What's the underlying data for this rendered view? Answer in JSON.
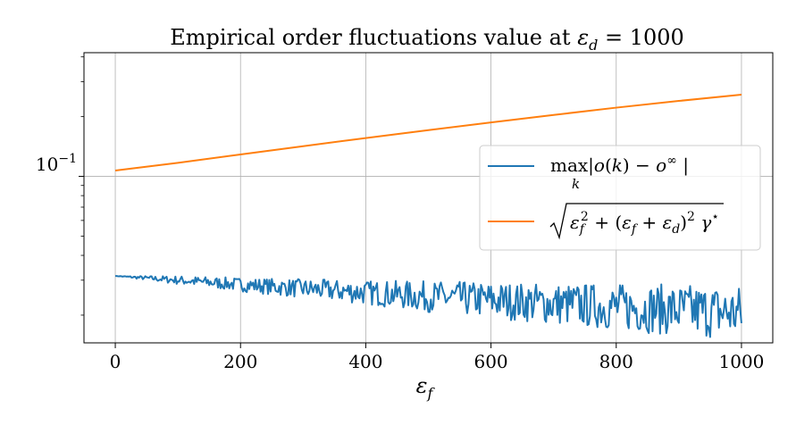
{
  "chart_data": {
    "type": "line",
    "title": "Empirical order fluctuations value at ε_d = 1000",
    "xlabel": "ε_f",
    "ylabel": "",
    "x_scale": "linear",
    "y_scale": "log",
    "xlim": [
      -50,
      1050
    ],
    "ylim": [
      0.0145,
      0.42
    ],
    "x_ticks": [
      0,
      200,
      400,
      600,
      800,
      1000
    ],
    "x_tick_labels": [
      "0",
      "200",
      "400",
      "600",
      "800",
      "1000"
    ],
    "y_major_ticks": [
      0.1
    ],
    "y_tick_labels": [
      "10^{-1}"
    ],
    "y_minor_ticks": [
      0.02,
      0.03,
      0.04,
      0.05,
      0.06,
      0.07,
      0.08,
      0.09,
      0.2,
      0.3,
      0.4
    ],
    "grid": true,
    "legend_position": "center-right",
    "series": [
      {
        "name": "max_k |o(k) − o^∞|",
        "color": "#1f77b4",
        "noisy": true,
        "x": [
          0,
          100,
          200,
          300,
          400,
          500,
          600,
          700,
          800,
          900,
          1000
        ],
        "y": [
          0.0315,
          0.03,
          0.0285,
          0.0272,
          0.026,
          0.0248,
          0.0238,
          0.0228,
          0.022,
          0.0212,
          0.0205
        ],
        "noise_amplitude": [
          0.0,
          0.05,
          0.08,
          0.11,
          0.14,
          0.18,
          0.21,
          0.24,
          0.27,
          0.3,
          0.32
        ]
      },
      {
        "name": "√(ε_f² + (ε_f + ε_d)²) γ*",
        "color": "#ff7f0e",
        "x": [
          0,
          100,
          200,
          300,
          400,
          500,
          600,
          700,
          800,
          900,
          1000
        ],
        "y": [
          0.107,
          0.117,
          0.129,
          0.142,
          0.156,
          0.171,
          0.187,
          0.204,
          0.222,
          0.24,
          0.258
        ]
      }
    ]
  }
}
